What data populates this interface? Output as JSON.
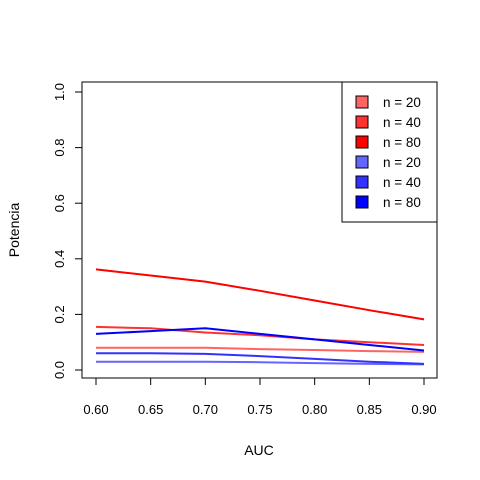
{
  "chart_data": {
    "type": "line",
    "xlabel": "AUC",
    "ylabel": "Potencia",
    "xlim": [
      0.6,
      0.9
    ],
    "ylim": [
      0,
      1
    ],
    "x_ticks": [
      "0.60",
      "0.65",
      "0.70",
      "0.75",
      "0.80",
      "0.85",
      "0.90"
    ],
    "y_ticks": [
      "0.0",
      "0.2",
      "0.4",
      "0.6",
      "0.8",
      "1.0"
    ],
    "grid": false,
    "legend_position": "top-right",
    "x": [
      0.6,
      0.65,
      0.7,
      0.75,
      0.8,
      0.85,
      0.9
    ],
    "series": [
      {
        "name": "n = 20",
        "color": "#ff6464",
        "values": [
          0.08,
          0.08,
          0.08,
          0.075,
          0.072,
          0.068,
          0.065
        ]
      },
      {
        "name": "n = 40",
        "color": "#ff3232",
        "values": [
          0.155,
          0.15,
          0.135,
          0.125,
          0.11,
          0.1,
          0.09
        ]
      },
      {
        "name": "n = 80",
        "color": "#ff0000",
        "values": [
          0.362,
          0.34,
          0.318,
          0.285,
          0.25,
          0.215,
          0.182
        ]
      },
      {
        "name": "n = 20",
        "color": "#6464ff",
        "values": [
          0.03,
          0.03,
          0.03,
          0.028,
          0.025,
          0.022,
          0.02
        ]
      },
      {
        "name": "n = 40",
        "color": "#3232ff",
        "values": [
          0.06,
          0.06,
          0.058,
          0.05,
          0.04,
          0.03,
          0.022
        ]
      },
      {
        "name": "n = 80",
        "color": "#0000ff",
        "values": [
          0.13,
          0.14,
          0.15,
          0.13,
          0.11,
          0.09,
          0.07
        ]
      }
    ]
  }
}
